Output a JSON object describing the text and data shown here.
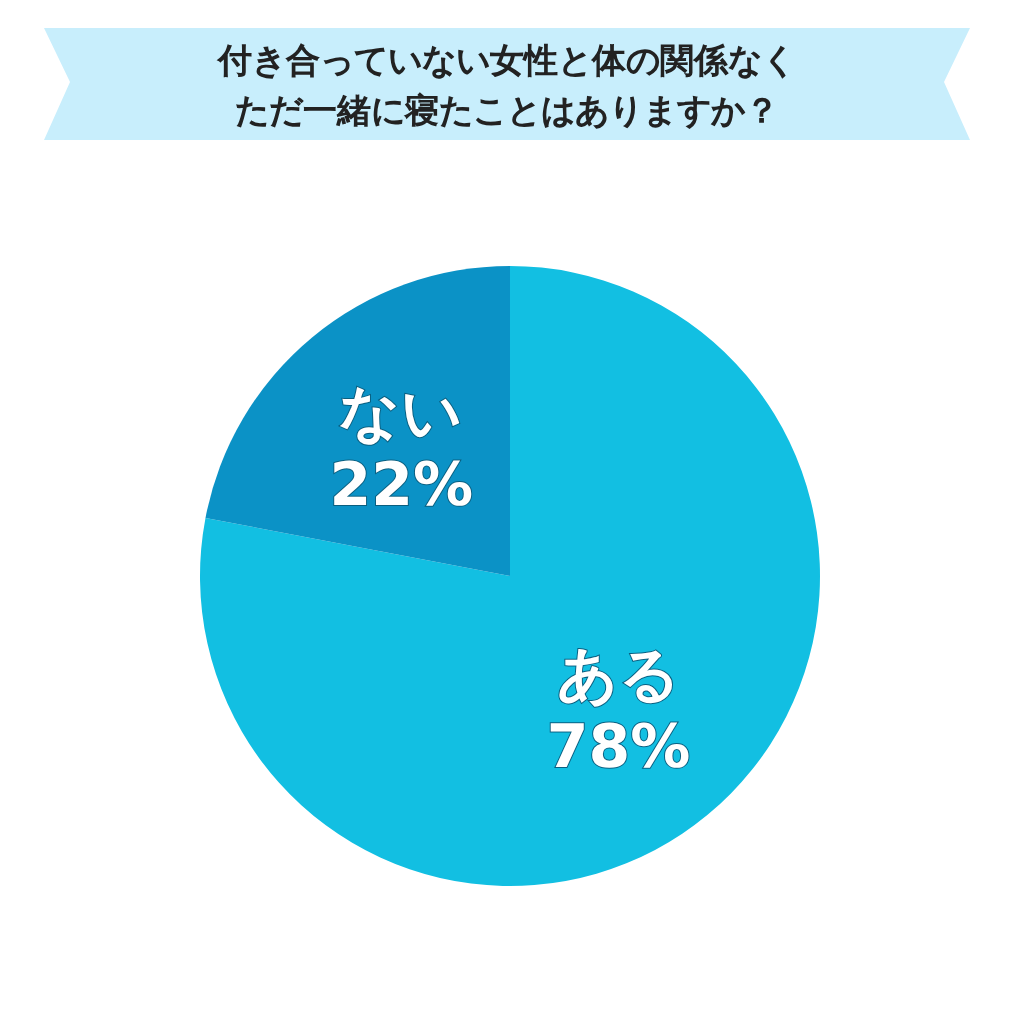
{
  "chart_data": {
    "type": "pie",
    "title": "付き合っていない女性と体の関係なくただ一緒に寝たことはありますか？",
    "categories": [
      "ある",
      "ない"
    ],
    "values": [
      78,
      22
    ],
    "colors": [
      "#12bfe2",
      "#0b92c6"
    ],
    "value_labels": [
      "78%",
      "22%"
    ]
  }
}
